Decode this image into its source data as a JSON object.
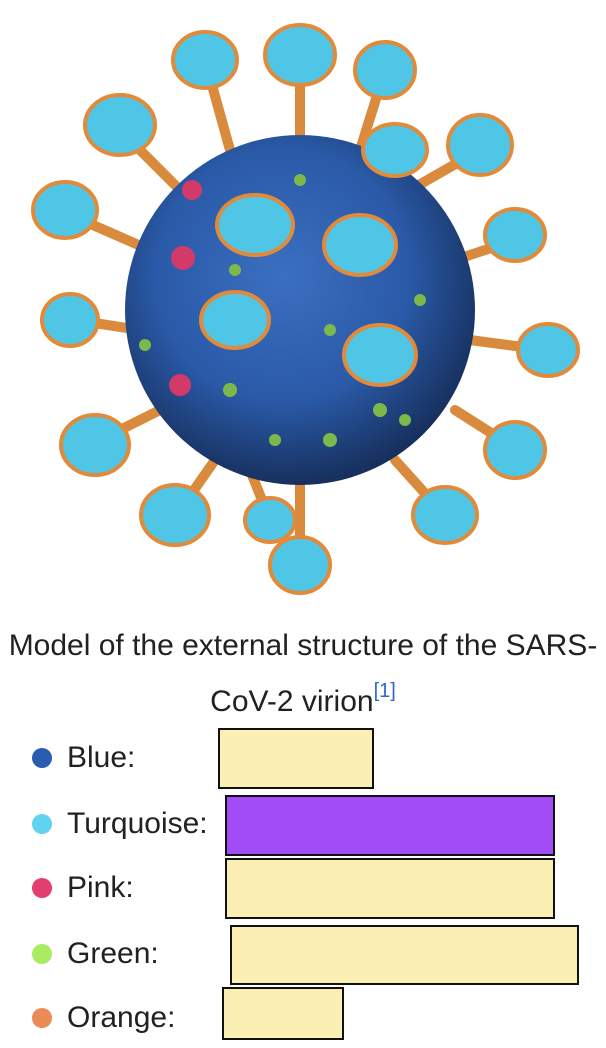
{
  "figure": {
    "icon": "sars-cov-2-virion-model"
  },
  "caption": {
    "text": "Model of the external structure of the SARS-CoV-2 virion",
    "reference": "[1]"
  },
  "legend": {
    "items": [
      {
        "label": "Blue:",
        "color": "#2a5db0",
        "answer": "",
        "selected": false
      },
      {
        "label": "Turquoise:",
        "color": "#5fd3f0",
        "answer": "",
        "selected": true
      },
      {
        "label": "Pink:",
        "color": "#e23e6e",
        "answer": "",
        "selected": false
      },
      {
        "label": "Green:",
        "color": "#a9ec63",
        "answer": "",
        "selected": false
      },
      {
        "label": "Orange:",
        "color": "#ea8a57",
        "answer": "",
        "selected": false
      }
    ]
  },
  "colors": {
    "box_fill": "#fcefb4",
    "box_selected_fill": "#a14cf5",
    "link": "#3366cc"
  }
}
